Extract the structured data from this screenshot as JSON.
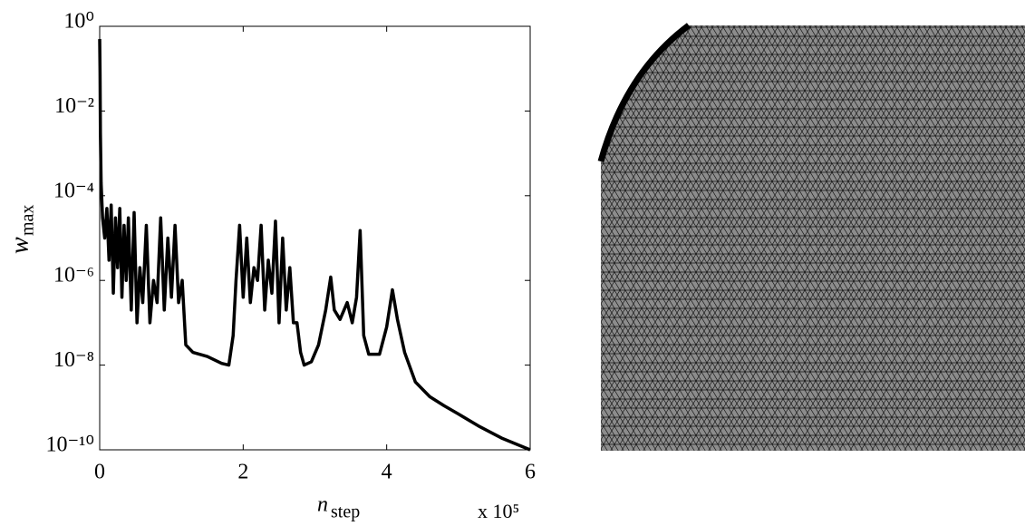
{
  "chart_data": {
    "type": "line",
    "log_y": true,
    "xlabel": "n",
    "xlabel_sub": "step",
    "ylabel": "w",
    "ylabel_sub": "max",
    "x_multiplier": "x 10⁵",
    "xlim": [
      0,
      6
    ],
    "xticks": [
      0,
      2,
      4,
      6
    ],
    "ylim": [
      1e-10,
      1
    ],
    "yticks": [
      {
        "value": 1,
        "label": "10⁰"
      },
      {
        "value": 0.01,
        "label": "10⁻²"
      },
      {
        "value": 0.0001,
        "label": "10⁻⁴"
      },
      {
        "value": 1e-06,
        "label": "10⁻⁶"
      },
      {
        "value": 1e-08,
        "label": "10⁻⁸"
      },
      {
        "value": 1e-10,
        "label": "10⁻¹⁰"
      }
    ],
    "color": "#000000",
    "x": [
      0,
      0.005,
      0.01,
      0.02,
      0.04,
      0.07,
      0.1,
      0.13,
      0.16,
      0.19,
      0.22,
      0.25,
      0.28,
      0.31,
      0.34,
      0.37,
      0.4,
      0.44,
      0.48,
      0.52,
      0.56,
      0.6,
      0.65,
      0.7,
      0.75,
      0.8,
      0.85,
      0.9,
      0.95,
      1.0,
      1.05,
      1.1,
      1.15,
      1.2,
      1.3,
      1.5,
      1.7,
      1.8,
      1.86,
      1.9,
      1.95,
      2.0,
      2.05,
      2.1,
      2.15,
      2.2,
      2.25,
      2.3,
      2.35,
      2.4,
      2.45,
      2.5,
      2.55,
      2.6,
      2.65,
      2.7,
      2.75,
      2.8,
      2.85,
      2.95,
      3.05,
      3.15,
      3.22,
      3.27,
      3.35,
      3.45,
      3.52,
      3.58,
      3.63,
      3.68,
      3.75,
      3.9,
      4.0,
      4.08,
      4.15,
      4.25,
      4.4,
      4.6,
      4.8,
      5.0,
      5.3,
      5.6,
      6.0
    ],
    "values": [
      0.5,
      0.08,
      0.003,
      0.0002,
      3e-05,
      1e-05,
      5e-05,
      3e-06,
      6e-05,
      5e-07,
      3e-05,
      2e-06,
      5e-05,
      4e-07,
      2e-05,
      1e-06,
      3e-05,
      2e-07,
      4e-05,
      1e-07,
      2e-06,
      3e-07,
      2e-05,
      1e-07,
      1e-06,
      3e-07,
      3e-05,
      2e-07,
      1e-05,
      4e-07,
      2e-05,
      3e-07,
      1e-06,
      3e-08,
      2e-08,
      1.6e-08,
      1.1e-08,
      1e-08,
      5e-08,
      1e-06,
      2e-05,
      4e-07,
      1e-05,
      3e-07,
      2e-06,
      1e-06,
      2e-05,
      2e-07,
      3e-06,
      5e-07,
      2.5e-05,
      1e-07,
      1e-05,
      2e-07,
      2e-06,
      1e-07,
      1e-07,
      2e-08,
      1e-08,
      1.2e-08,
      3e-08,
      2e-07,
      1.2e-06,
      2e-07,
      1.2e-07,
      3e-07,
      1e-07,
      4e-07,
      1.5e-05,
      5e-08,
      1.8e-08,
      1.8e-08,
      8e-08,
      6e-07,
      1.2e-07,
      2e-08,
      4e-09,
      1.8e-09,
      1.1e-09,
      7e-10,
      3.5e-10,
      1.9e-10,
      1e-10
    ]
  }
}
